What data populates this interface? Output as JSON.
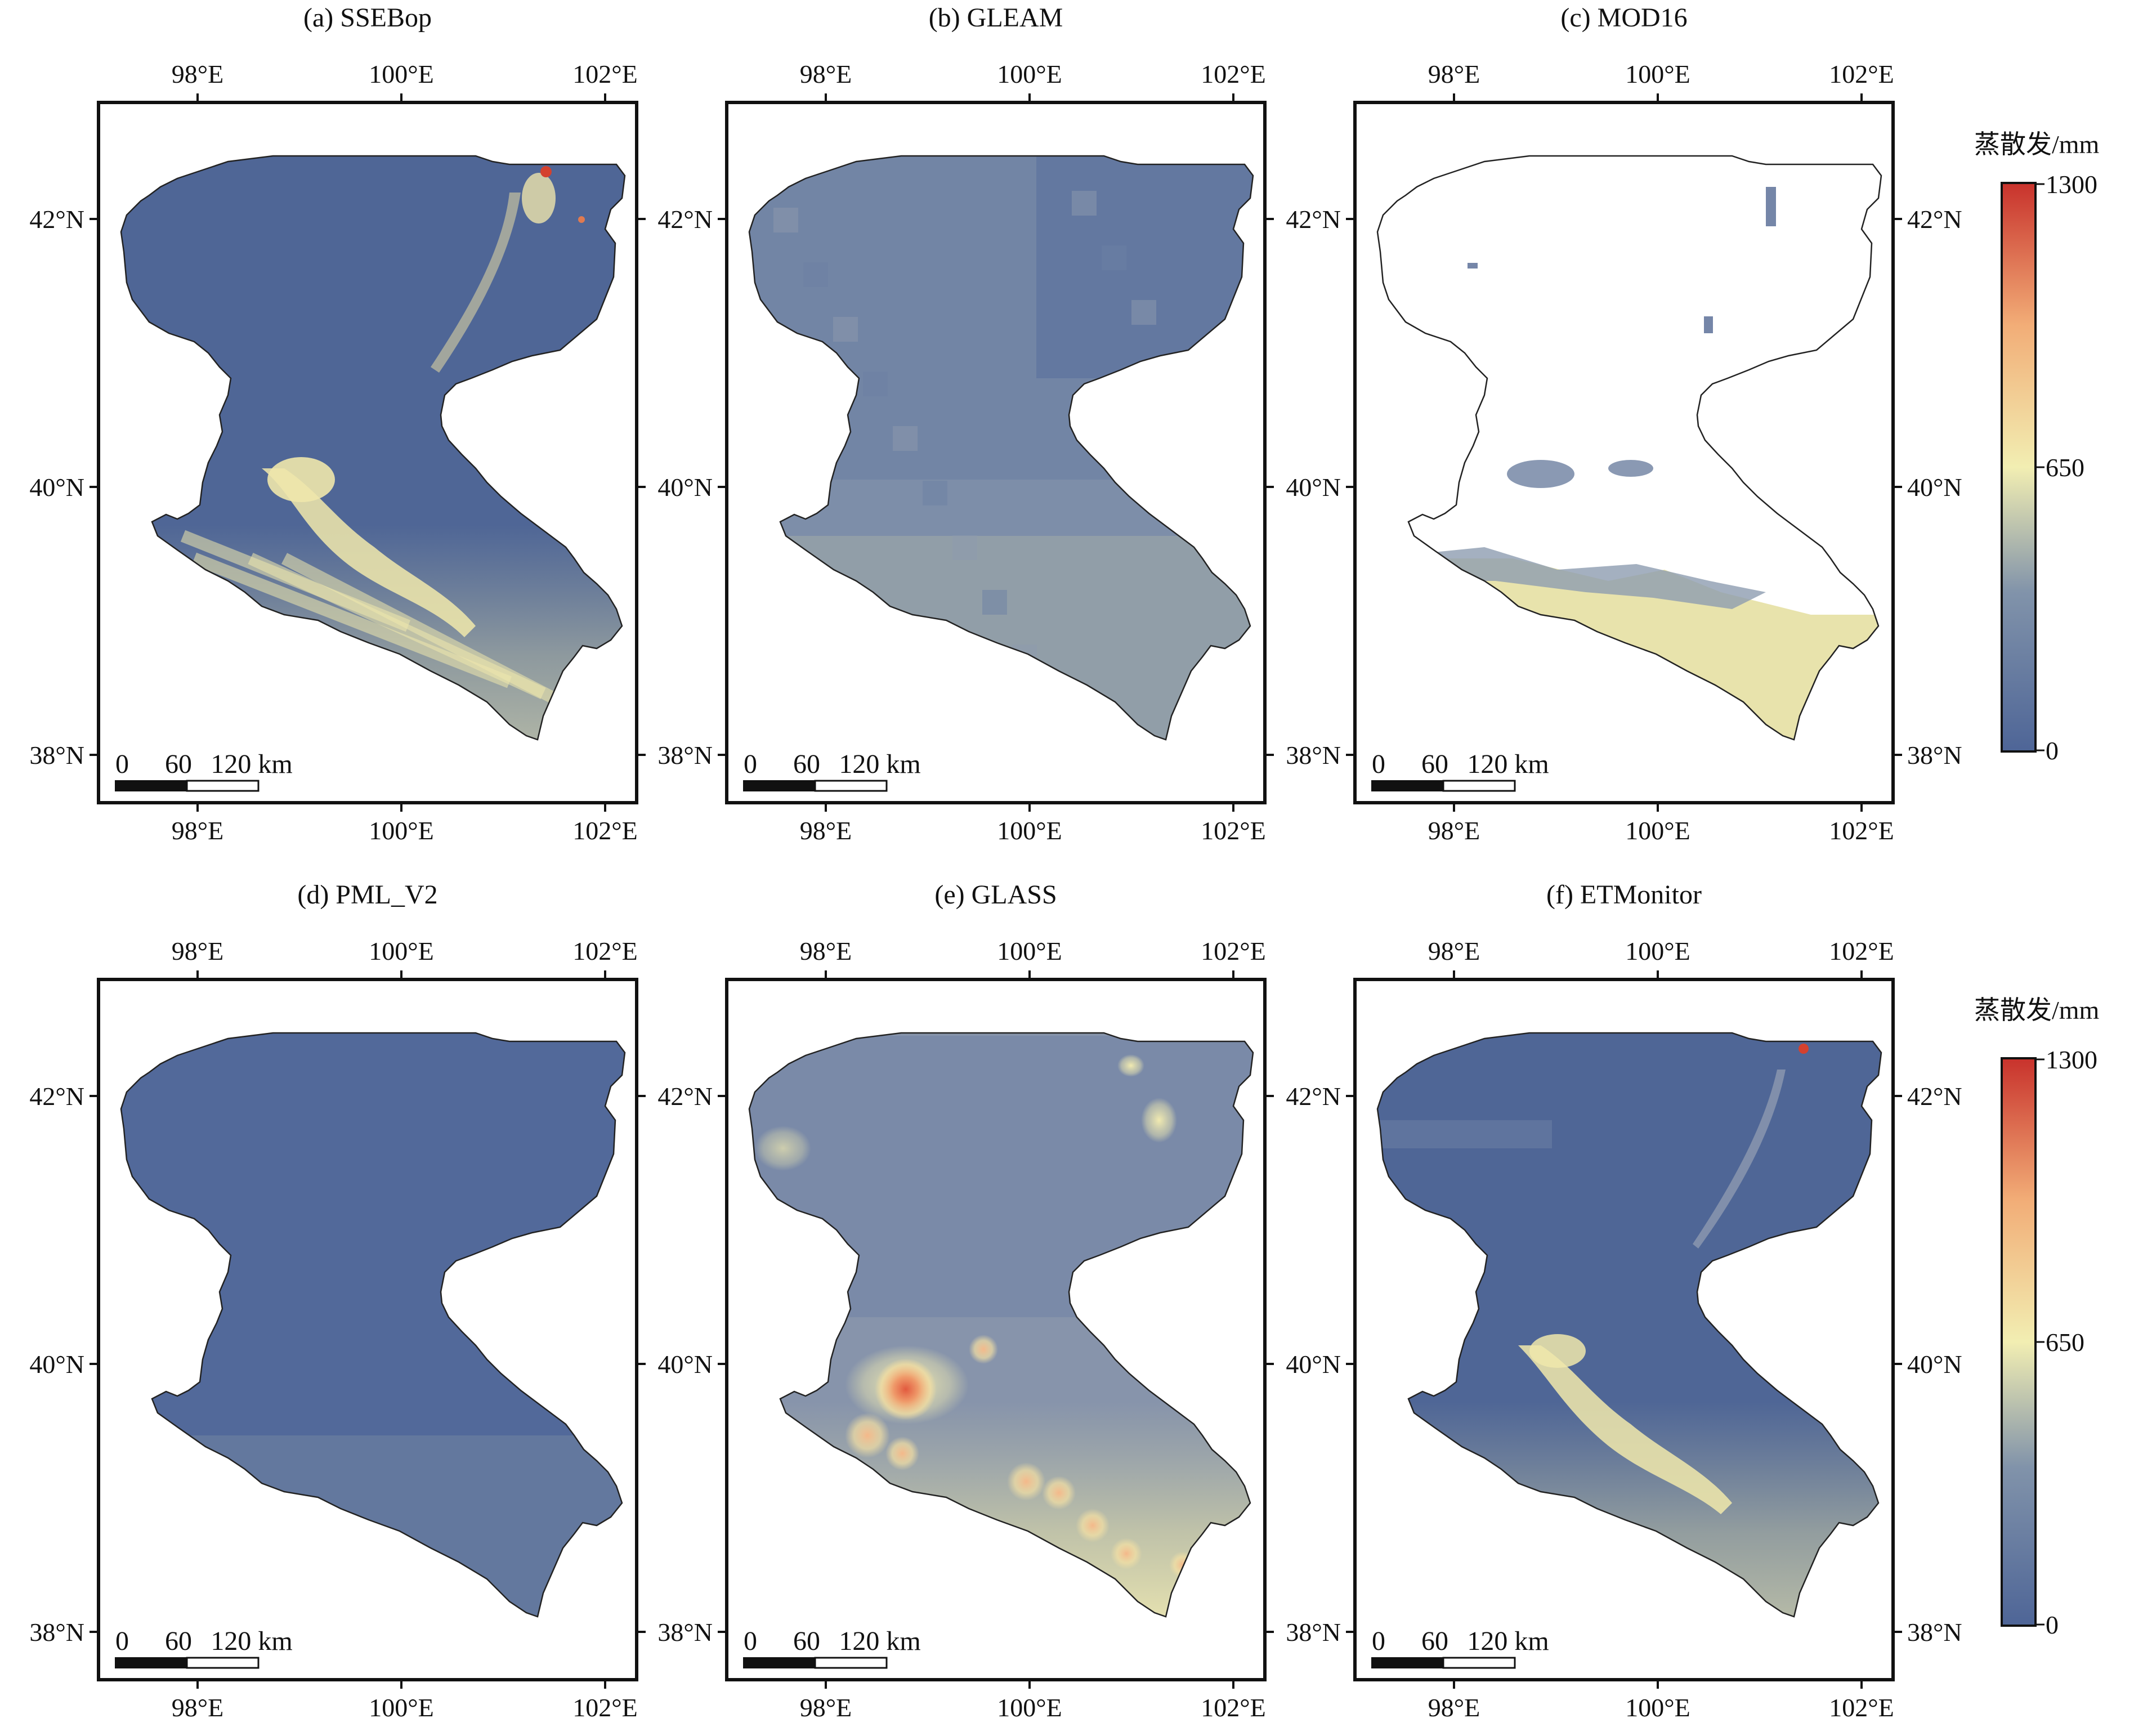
{
  "figure": {
    "panels": [
      {
        "id": "a",
        "title": "(a) SSEBop",
        "style": "ssebop"
      },
      {
        "id": "b",
        "title": "(b) GLEAM",
        "style": "gleam"
      },
      {
        "id": "c",
        "title": "(c) MOD16",
        "style": "mod16"
      },
      {
        "id": "d",
        "title": "(d) PML_V2",
        "style": "pml"
      },
      {
        "id": "e",
        "title": "(e) GLASS",
        "style": "glass"
      },
      {
        "id": "f",
        "title": "(f) ETMonitor",
        "style": "etmonitor"
      }
    ],
    "lon_ticks": [
      "98°E",
      "100°E",
      "102°E"
    ],
    "lat_ticks": [
      "42°N",
      "40°N",
      "38°N"
    ],
    "scalebar": {
      "labels": [
        "0",
        "60",
        "120 km"
      ]
    },
    "colorbar": {
      "title": "蒸散发/mm",
      "max_label": "1300",
      "mid_label": "650",
      "min_label": "0",
      "range": [
        0,
        1300
      ],
      "colors": [
        "#4e6597",
        "#f2eeb2",
        "#c8322c"
      ]
    }
  }
}
